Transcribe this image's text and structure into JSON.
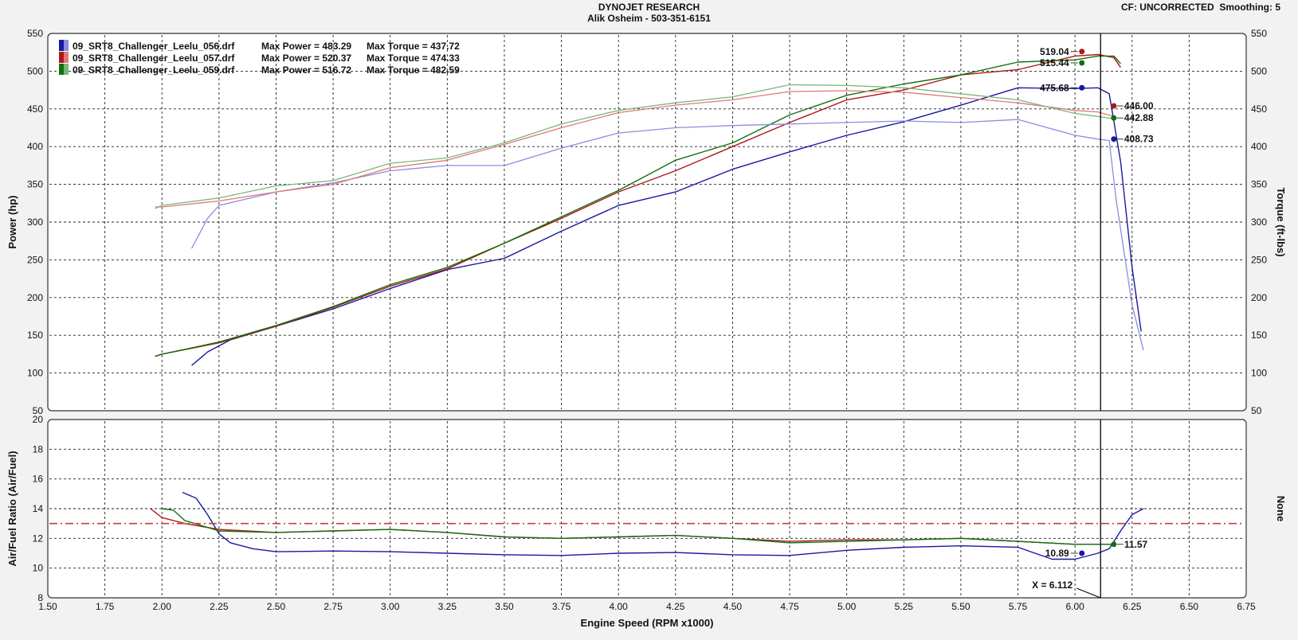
{
  "header": {
    "title": "DYNOJET RESEARCH",
    "subtitle": "Alik Osheim - 503-351-6151",
    "cf": "CF: UNCORRECTED",
    "smoothing": "Smoothing: 5"
  },
  "colors": {
    "run056": "#1818a0",
    "run056_light": "#8c8ce0",
    "run057": "#b01818",
    "run057_light": "#e07878",
    "run059": "#107010",
    "run059_light": "#78b878",
    "afr_ref": "#c04040",
    "plot_bg": "#ffffff",
    "page_bg": "#f2f2f2"
  },
  "chart_data": [
    {
      "type": "line",
      "panel": "power_torque",
      "xlabel": "Engine Speed (RPM x1000)",
      "ylabel": "Power (hp)",
      "ylabel_right": "Torque (ft-lbs)",
      "xlim": [
        1.5,
        6.75
      ],
      "ylim": [
        50,
        550
      ],
      "ylim_right": [
        50,
        550
      ],
      "x_ticks": [
        "1.50",
        "1.75",
        "2.00",
        "2.25",
        "2.50",
        "2.75",
        "3.00",
        "3.25",
        "3.50",
        "3.75",
        "4.00",
        "4.25",
        "4.50",
        "4.75",
        "5.00",
        "5.25",
        "5.50",
        "5.75",
        "6.00",
        "6.25",
        "6.50",
        "6.75"
      ],
      "y_ticks": [
        "50",
        "100",
        "150",
        "200",
        "250",
        "300",
        "350",
        "400",
        "450",
        "500",
        "550"
      ],
      "grid": true,
      "legend_position": "top-left",
      "cursor_x": 6.112,
      "legend": [
        {
          "file": "09_SRT8_Challenger_Leelu_056.drf",
          "max_power": "Max Power = 483.29",
          "max_torque": "Max Torque = 437.72"
        },
        {
          "file": "09_SRT8_Challenger_Leelu_057.drf",
          "max_power": "Max Power = 520.37",
          "max_torque": "Max Torque = 474.33"
        },
        {
          "file": "09_SRT8_Challenger_Leelu_059.drf",
          "max_power": "Max Power = 516.72",
          "max_torque": "Max Torque = 482.59"
        }
      ],
      "series": [
        {
          "run": "056",
          "kind": "power",
          "x": [
            2.13,
            2.2,
            2.3,
            2.5,
            2.75,
            3.0,
            3.25,
            3.5,
            3.75,
            4.0,
            4.25,
            4.5,
            4.75,
            5.0,
            5.25,
            5.5,
            5.75,
            6.0,
            6.1,
            6.15,
            6.2,
            6.25,
            6.29
          ],
          "y": [
            110,
            128,
            144,
            162,
            185,
            212,
            237,
            252,
            288,
            322,
            340,
            370,
            393,
            415,
            433,
            455,
            478,
            477,
            478,
            470,
            380,
            240,
            155
          ]
        },
        {
          "run": "057",
          "kind": "power",
          "x": [
            1.97,
            2.0,
            2.25,
            2.5,
            2.75,
            3.0,
            3.25,
            3.5,
            3.75,
            4.0,
            4.25,
            4.5,
            4.75,
            5.0,
            5.25,
            5.5,
            5.75,
            6.0,
            6.1,
            6.17,
            6.2
          ],
          "y": [
            122,
            125,
            140,
            162,
            187,
            215,
            238,
            272,
            305,
            340,
            368,
            400,
            432,
            462,
            475,
            495,
            502,
            520,
            522,
            518,
            505
          ]
        },
        {
          "run": "059",
          "kind": "power",
          "x": [
            1.97,
            2.0,
            2.25,
            2.5,
            2.75,
            3.0,
            3.25,
            3.5,
            3.75,
            4.0,
            4.25,
            4.5,
            4.75,
            5.0,
            5.25,
            5.5,
            5.75,
            6.0,
            6.1,
            6.17,
            6.2
          ],
          "y": [
            122,
            125,
            141,
            163,
            188,
            217,
            240,
            272,
            307,
            342,
            382,
            405,
            442,
            468,
            483,
            495,
            512,
            515,
            520,
            520,
            510
          ]
        },
        {
          "run": "056",
          "kind": "torque",
          "x": [
            2.13,
            2.2,
            2.25,
            2.5,
            2.75,
            3.0,
            3.25,
            3.5,
            3.75,
            4.0,
            4.25,
            4.5,
            4.75,
            5.0,
            5.25,
            5.5,
            5.75,
            6.0,
            6.1,
            6.15,
            6.18,
            6.22,
            6.25,
            6.3
          ],
          "y": [
            265,
            305,
            322,
            340,
            352,
            368,
            375,
            375,
            398,
            418,
            425,
            428,
            430,
            432,
            434,
            432,
            436,
            415,
            410,
            408,
            330,
            250,
            190,
            130
          ]
        },
        {
          "run": "057",
          "kind": "torque",
          "x": [
            1.97,
            2.0,
            2.25,
            2.5,
            2.75,
            3.0,
            3.25,
            3.5,
            3.75,
            4.0,
            4.25,
            4.5,
            4.75,
            5.0,
            5.25,
            5.5,
            5.75,
            6.0,
            6.1,
            6.17
          ],
          "y": [
            320,
            320,
            328,
            340,
            350,
            372,
            382,
            403,
            425,
            445,
            455,
            462,
            473,
            474,
            472,
            465,
            458,
            448,
            446,
            440
          ]
        },
        {
          "run": "059",
          "kind": "torque",
          "x": [
            1.97,
            2.0,
            2.25,
            2.5,
            2.75,
            3.0,
            3.25,
            3.5,
            3.75,
            4.0,
            4.25,
            4.5,
            4.75,
            5.0,
            5.25,
            5.5,
            5.75,
            6.0,
            6.1,
            6.17
          ],
          "y": [
            318,
            322,
            332,
            348,
            355,
            378,
            385,
            405,
            430,
            448,
            458,
            466,
            482,
            481,
            478,
            470,
            462,
            444,
            440,
            437
          ]
        }
      ],
      "data_labels": [
        {
          "text": "519.04",
          "run": "057",
          "x": 6.03,
          "y": 526,
          "side": "left"
        },
        {
          "text": "515.44",
          "run": "059",
          "x": 6.03,
          "y": 511,
          "side": "left"
        },
        {
          "text": "475.68",
          "run": "056",
          "x": 6.03,
          "y": 478,
          "side": "left"
        },
        {
          "text": "446.00",
          "run": "057",
          "x": 6.17,
          "y": 454,
          "side": "right"
        },
        {
          "text": "442.88",
          "run": "059",
          "x": 6.17,
          "y": 438,
          "side": "right"
        },
        {
          "text": "408.73",
          "run": "056",
          "x": 6.17,
          "y": 410,
          "side": "right"
        }
      ]
    },
    {
      "type": "line",
      "panel": "air_fuel",
      "xlabel": "Engine Speed (RPM x1000)",
      "ylabel": "Air/Fuel Ratio (Air/Fuel)",
      "ylabel_right": "None",
      "xlim": [
        1.5,
        6.75
      ],
      "ylim": [
        8,
        20
      ],
      "x_ticks": [
        "1.50",
        "1.75",
        "2.00",
        "2.25",
        "2.50",
        "2.75",
        "3.00",
        "3.25",
        "3.50",
        "3.75",
        "4.00",
        "4.25",
        "4.50",
        "4.75",
        "5.00",
        "5.25",
        "5.50",
        "5.75",
        "6.00",
        "6.25",
        "6.50",
        "6.75"
      ],
      "y_ticks": [
        "8",
        "10",
        "12",
        "14",
        "16",
        "18",
        "20"
      ],
      "grid": true,
      "reference_line": 13.0,
      "cursor_x": 6.112,
      "cursor_label": "X = 6.112",
      "series": [
        {
          "run": "056",
          "x": [
            2.09,
            2.15,
            2.2,
            2.25,
            2.3,
            2.4,
            2.5,
            2.75,
            3.0,
            3.25,
            3.5,
            3.75,
            4.0,
            4.25,
            4.5,
            4.75,
            5.0,
            5.25,
            5.5,
            5.75,
            5.9,
            6.0,
            6.1,
            6.15,
            6.2,
            6.25,
            6.3
          ],
          "y": [
            15.1,
            14.7,
            13.6,
            12.3,
            11.7,
            11.3,
            11.1,
            11.15,
            11.1,
            11.0,
            10.9,
            10.85,
            11.0,
            11.05,
            10.9,
            10.85,
            11.2,
            11.4,
            11.5,
            11.4,
            10.6,
            10.6,
            11.0,
            11.3,
            12.5,
            13.6,
            14.0
          ]
        },
        {
          "run": "057",
          "x": [
            1.95,
            2.0,
            2.1,
            2.25,
            2.5,
            2.75,
            3.0,
            3.25,
            3.5,
            3.75,
            4.0,
            4.25,
            4.5,
            4.75,
            5.0,
            5.25,
            5.5,
            5.75,
            6.0,
            6.17
          ],
          "y": [
            14.0,
            13.4,
            13.0,
            12.6,
            12.4,
            12.5,
            12.6,
            12.4,
            12.1,
            12.0,
            12.1,
            12.2,
            12.0,
            11.8,
            11.9,
            11.9,
            12.0,
            11.8,
            11.6,
            11.6
          ]
        },
        {
          "run": "059",
          "x": [
            2.0,
            2.05,
            2.1,
            2.25,
            2.5,
            2.75,
            3.0,
            3.25,
            3.5,
            3.75,
            4.0,
            4.25,
            4.5,
            4.75,
            5.0,
            5.25,
            5.5,
            5.75,
            6.0,
            6.17
          ],
          "y": [
            14.0,
            13.9,
            13.2,
            12.5,
            12.4,
            12.5,
            12.6,
            12.4,
            12.1,
            12.0,
            12.1,
            12.2,
            12.0,
            11.7,
            11.8,
            11.9,
            12.0,
            11.8,
            11.6,
            11.6
          ]
        }
      ],
      "data_labels": [
        {
          "text": "10.89",
          "run": "056",
          "x": 6.03,
          "y": 11.0,
          "side": "left"
        },
        {
          "text": "11.57",
          "run": "059",
          "x": 6.17,
          "y": 11.6,
          "side": "right"
        }
      ]
    }
  ]
}
